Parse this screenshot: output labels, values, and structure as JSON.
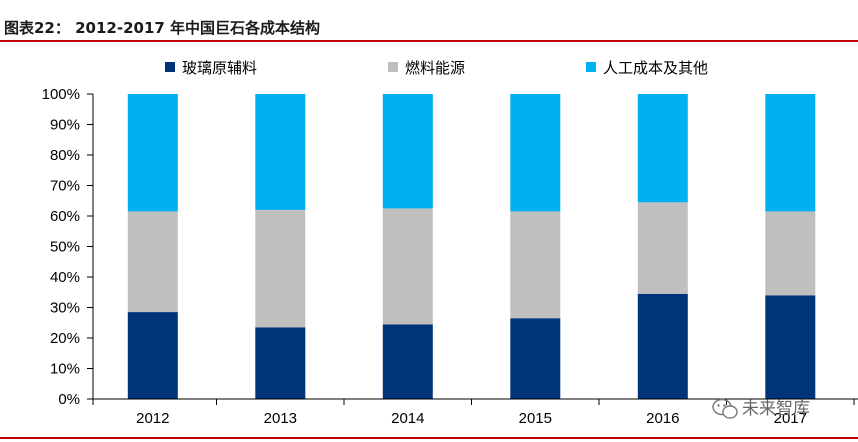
{
  "title": "图表22：  2012-2017 年中国巨石各成本结构",
  "watermark": "未来智库",
  "colors": {
    "rule": "#c00000",
    "axis": "#000000",
    "series": [
      "#003478",
      "#bfbfbf",
      "#00b0f0"
    ]
  },
  "chart_data": {
    "type": "bar",
    "stacked": true,
    "categories": [
      "2012",
      "2013",
      "2014",
      "2015",
      "2016",
      "2017"
    ],
    "series": [
      {
        "name": "玻璃原辅料",
        "values": [
          28.5,
          23.5,
          24.5,
          26.5,
          34.5,
          34.0
        ]
      },
      {
        "name": "燃料能源",
        "values": [
          33.0,
          38.5,
          38.0,
          35.0,
          30.0,
          27.5
        ]
      },
      {
        "name": "人工成本及其他",
        "values": [
          38.5,
          38.0,
          37.5,
          38.5,
          35.5,
          38.5
        ]
      }
    ],
    "ylim": [
      0,
      100
    ],
    "yticks": [
      "0%",
      "10%",
      "20%",
      "30%",
      "40%",
      "50%",
      "60%",
      "70%",
      "80%",
      "90%",
      "100%"
    ],
    "legend_position": "top",
    "grid": false
  }
}
